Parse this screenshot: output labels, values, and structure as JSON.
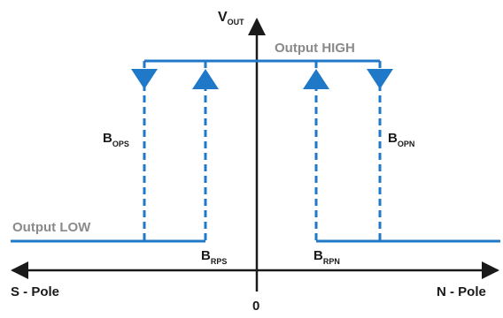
{
  "colors": {
    "axis": "#1a1a1a",
    "trace": "#1f78c8",
    "label_gray": "#8a8a8a",
    "text": "#1a1a1a"
  },
  "labels": {
    "v_out_main": "V",
    "v_out_sub": "OUT",
    "output_high": "Output HIGH",
    "output_low": "Output LOW",
    "s_pole": "S - Pole",
    "n_pole": "N - Pole",
    "origin": "0",
    "b_ops_main": "B",
    "b_ops_sub": "OPS",
    "b_rps_main": "B",
    "b_rps_sub": "RPS",
    "b_rpn_main": "B",
    "b_rpn_sub": "RPN",
    "b_opn_main": "B",
    "b_opn_sub": "OPN"
  }
}
